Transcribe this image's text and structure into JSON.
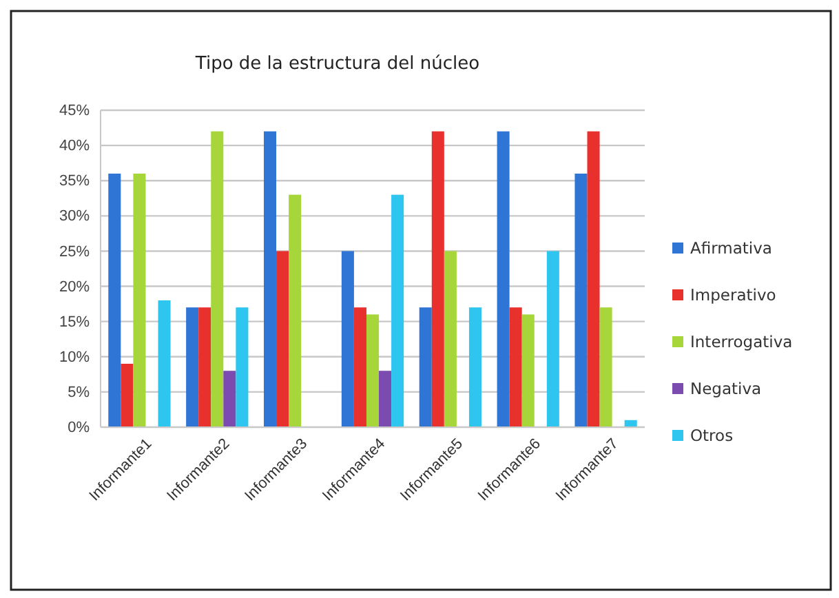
{
  "chart_data": {
    "type": "bar",
    "title": "Tipo de la estructura del núcleo",
    "categories": [
      "Informante1",
      "Informante2",
      "Informante3",
      "Informante4",
      "Informante5",
      "Informante6",
      "Informante7"
    ],
    "series": [
      {
        "name": "Afirmativa",
        "color": "#2f75d6",
        "values": [
          36,
          17,
          42,
          25,
          17,
          42,
          36
        ]
      },
      {
        "name": "Imperativo",
        "color": "#e8302d",
        "values": [
          9,
          17,
          25,
          17,
          42,
          17,
          42
        ]
      },
      {
        "name": "Interrogativa",
        "color": "#a6d63a",
        "values": [
          36,
          42,
          33,
          16,
          25,
          16,
          17
        ]
      },
      {
        "name": "Negativa",
        "color": "#7b4bb0",
        "values": [
          0,
          8,
          0,
          8,
          0,
          0,
          0
        ]
      },
      {
        "name": "Otros",
        "color": "#2ec6ef",
        "values": [
          18,
          17,
          0,
          33,
          17,
          25,
          1
        ]
      }
    ],
    "ylim": [
      0,
      45
    ],
    "yticks": [
      {
        "value": 0,
        "label": "0%"
      },
      {
        "value": 5,
        "label": "5%"
      },
      {
        "value": 10,
        "label": "10%"
      },
      {
        "value": 15,
        "label": "15%"
      },
      {
        "value": 20,
        "label": "20%"
      },
      {
        "value": 25,
        "label": "25%"
      },
      {
        "value": 30,
        "label": "30%"
      },
      {
        "value": 35,
        "label": "35%"
      },
      {
        "value": 40,
        "label": "40%"
      },
      {
        "value": 45,
        "label": "45%"
      }
    ],
    "grid": "y",
    "legend": "right"
  }
}
